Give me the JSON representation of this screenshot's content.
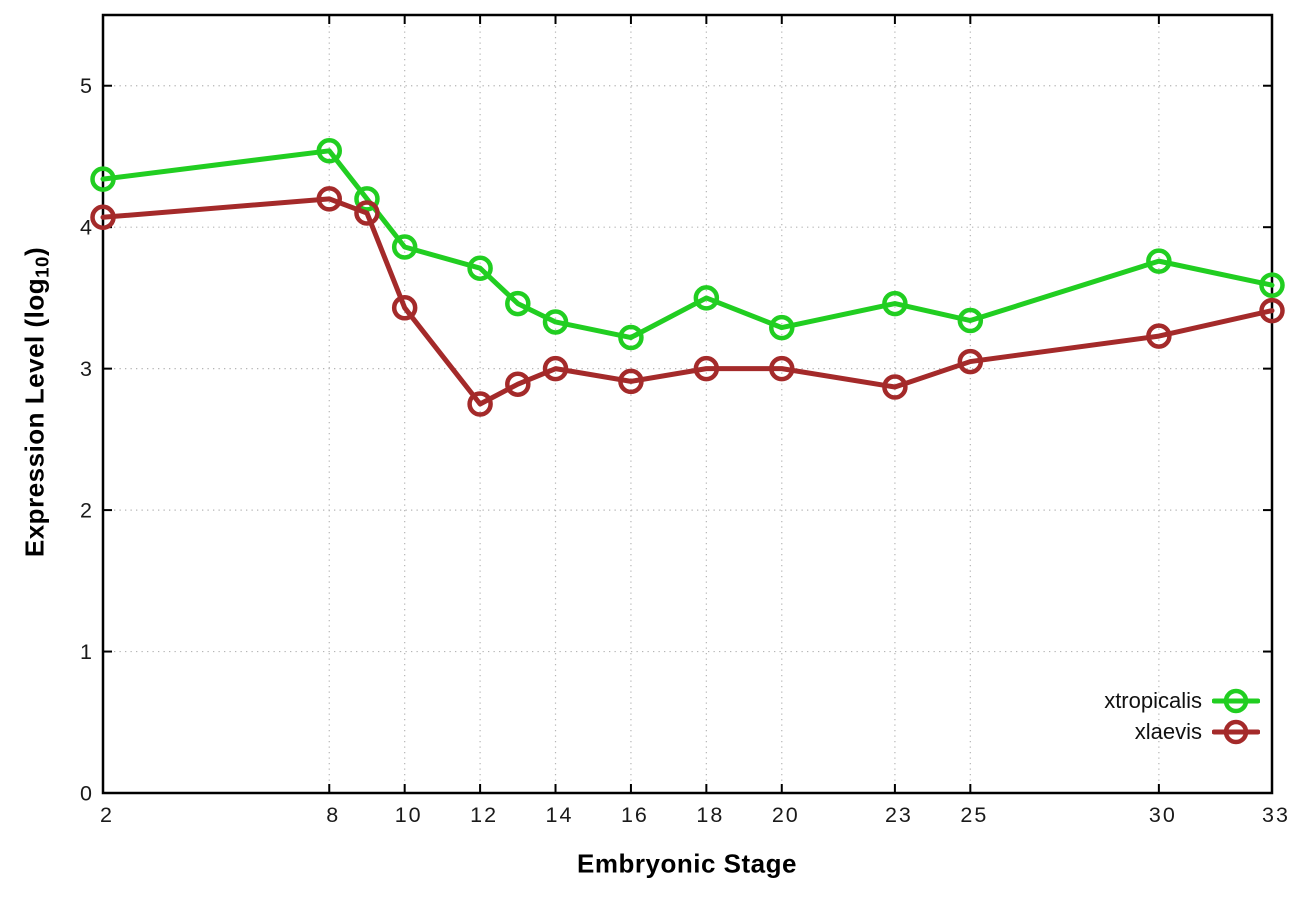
{
  "page": {
    "background": "#ffffff"
  },
  "chart_data": {
    "type": "line",
    "title": "",
    "xlabel": "Embryonic Stage",
    "ylabel": "Expression Level (log10)",
    "ylabel_parts": {
      "main": "Expression Level (log",
      "sub": "10",
      "close": ")"
    },
    "xlim": [
      2,
      33
    ],
    "ylim": [
      0,
      5.5
    ],
    "x_ticks": [
      2,
      8,
      10,
      12,
      14,
      16,
      18,
      20,
      23,
      25,
      30,
      33
    ],
    "y_ticks": [
      0,
      1,
      2,
      3,
      4,
      5
    ],
    "grid": true,
    "grid_style": "dotted",
    "legend_position": "inside-bottom-right",
    "x": [
      2,
      8,
      9,
      10,
      12,
      13,
      14,
      16,
      18,
      20,
      23,
      25,
      30,
      33
    ],
    "series": [
      {
        "name": "xtropicalis",
        "color": "#21ce21",
        "marker": "open-circle",
        "values": [
          4.34,
          4.54,
          4.2,
          3.86,
          3.71,
          3.46,
          3.33,
          3.22,
          3.5,
          3.29,
          3.46,
          3.34,
          3.76,
          3.59
        ]
      },
      {
        "name": "xlaevis",
        "color": "#a42a2a",
        "marker": "open-circle",
        "values": [
          4.07,
          4.2,
          4.1,
          3.43,
          2.75,
          2.89,
          3.0,
          2.91,
          3.0,
          3.0,
          2.87,
          3.05,
          3.23,
          3.41
        ]
      }
    ],
    "axis_color": "#000000",
    "tick_label_color": "#1a1a1a",
    "grid_color": "#b5b5b5"
  }
}
